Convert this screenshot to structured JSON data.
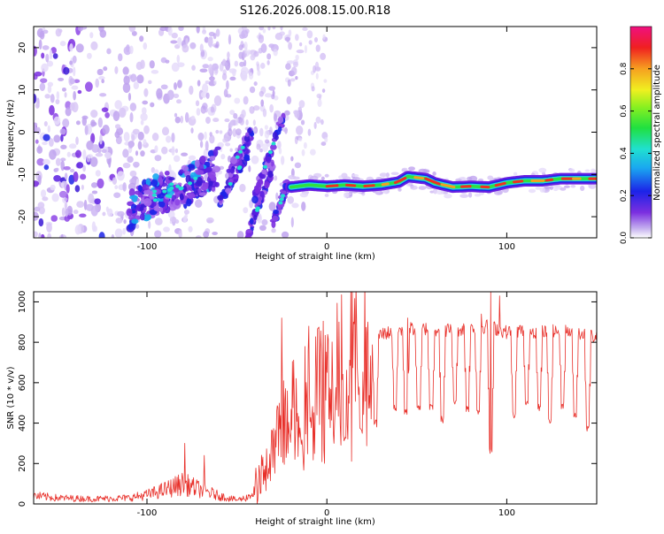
{
  "title": "S126.2026.008.15.00.R18",
  "chart_data": [
    {
      "type": "heatmap",
      "xlabel": "Height of straight line (km)",
      "ylabel": "Frequency (Hz)",
      "xlim": [
        -163,
        150
      ],
      "ylim": [
        -25,
        25
      ],
      "x_ticks": [
        {
          "value": -100,
          "label": "-100"
        },
        {
          "value": 0,
          "label": "0"
        },
        {
          "value": 100,
          "label": "100"
        }
      ],
      "y_ticks": [
        {
          "value": 20,
          "label": "20"
        },
        {
          "value": 10,
          "label": "10"
        },
        {
          "value": 0,
          "label": "0"
        },
        {
          "value": -10,
          "label": "-10"
        },
        {
          "value": -20,
          "label": "-20"
        }
      ],
      "colorbar": {
        "label": "Normalized spectral amplitude",
        "range": [
          0,
          1
        ],
        "ticks": [
          {
            "value": 0.0,
            "label": "0.0"
          },
          {
            "value": 0.2,
            "label": "0.2"
          },
          {
            "value": 0.4,
            "label": "0.4"
          },
          {
            "value": 0.6,
            "label": "0.6"
          },
          {
            "value": 0.8,
            "label": "0.8"
          }
        ]
      },
      "ridge": {
        "x": [
          -20,
          -10,
          0,
          10,
          20,
          30,
          40,
          45,
          55,
          60,
          70,
          80,
          90,
          100,
          110,
          120,
          130,
          140,
          150
        ],
        "freq": [
          -13,
          -12.5,
          -12.8,
          -12.5,
          -12.8,
          -12.5,
          -11.8,
          -10.5,
          -11,
          -12,
          -13,
          -12.8,
          -13,
          -12,
          -11.5,
          -11.5,
          -11,
          -11,
          -11
        ]
      },
      "scatter_band": {
        "x": [
          -110,
          -100,
          -90,
          -80,
          -70,
          -60
        ],
        "freq": [
          -19,
          -16,
          -14,
          -13,
          -11,
          -8
        ]
      },
      "streaks": [
        {
          "x": [
            -60,
            -44
          ],
          "freq": [
            -17,
            -5
          ]
        },
        {
          "x": [
            -45,
            -30
          ],
          "freq": [
            -26,
            -8
          ]
        },
        {
          "x": [
            -55,
            -42
          ],
          "freq": [
            -10,
            0
          ]
        },
        {
          "x": [
            -40,
            -24
          ],
          "freq": [
            -15,
            4
          ]
        },
        {
          "x": [
            -30,
            -22
          ],
          "freq": [
            -22,
            -12
          ]
        }
      ]
    },
    {
      "type": "line",
      "xlabel": "Height of straight line (km)",
      "ylabel": "SNR (10 * v/v)",
      "xlim": [
        -163,
        150
      ],
      "ylim": [
        0,
        1050
      ],
      "x_ticks": [
        {
          "value": -100,
          "label": "-100"
        },
        {
          "value": 0,
          "label": "0"
        },
        {
          "value": 100,
          "label": "100"
        }
      ],
      "y_ticks": [
        {
          "value": 0,
          "label": "0"
        },
        {
          "value": 200,
          "label": "200"
        },
        {
          "value": 400,
          "label": "400"
        },
        {
          "value": 600,
          "label": "600"
        },
        {
          "value": 800,
          "label": "800"
        },
        {
          "value": 1000,
          "label": "1000"
        }
      ],
      "series": [
        {
          "name": "SNR",
          "color": "#e8302a",
          "envelope_x": [
            -163,
            -150,
            -130,
            -110,
            -100,
            -90,
            -80,
            -70,
            -60,
            -50,
            -45,
            -40,
            -35,
            -30,
            -25,
            -20,
            -15,
            -10,
            -5,
            0,
            10,
            20,
            30,
            40,
            50,
            60,
            70,
            80,
            90,
            100,
            110,
            120,
            130,
            140,
            150
          ],
          "envelope_y": [
            40,
            30,
            25,
            30,
            45,
            70,
            100,
            70,
            40,
            20,
            30,
            60,
            150,
            250,
            380,
            450,
            480,
            520,
            560,
            600,
            700,
            790,
            840,
            860,
            870,
            865,
            860,
            870,
            880,
            850,
            860,
            850,
            855,
            850,
            820
          ],
          "spikes": [
            {
              "x": -79,
              "y": 300
            },
            {
              "x": -68,
              "y": 240
            },
            {
              "x": -25,
              "y": 920
            },
            {
              "x": -10,
              "y": 880
            },
            {
              "x": 45,
              "y": 920
            },
            {
              "x": 86,
              "y": 940
            },
            {
              "x": 91,
              "y": 1050
            },
            {
              "x": 96,
              "y": 1030
            }
          ],
          "dips": [
            {
              "x": 10,
              "y": 330
            },
            {
              "x": 19,
              "y": 360
            },
            {
              "x": 27,
              "y": 400
            },
            {
              "x": 38,
              "y": 480
            },
            {
              "x": 44,
              "y": 460
            },
            {
              "x": 51,
              "y": 470
            },
            {
              "x": 58,
              "y": 480
            },
            {
              "x": 64,
              "y": 420
            },
            {
              "x": 71,
              "y": 500
            },
            {
              "x": 78,
              "y": 470
            },
            {
              "x": 84,
              "y": 450
            },
            {
              "x": 91,
              "y": 260
            },
            {
              "x": 104,
              "y": 440
            },
            {
              "x": 111,
              "y": 500
            },
            {
              "x": 118,
              "y": 480
            },
            {
              "x": 124,
              "y": 420
            },
            {
              "x": 131,
              "y": 490
            },
            {
              "x": 138,
              "y": 430
            },
            {
              "x": 145,
              "y": 370
            }
          ]
        }
      ]
    }
  ]
}
